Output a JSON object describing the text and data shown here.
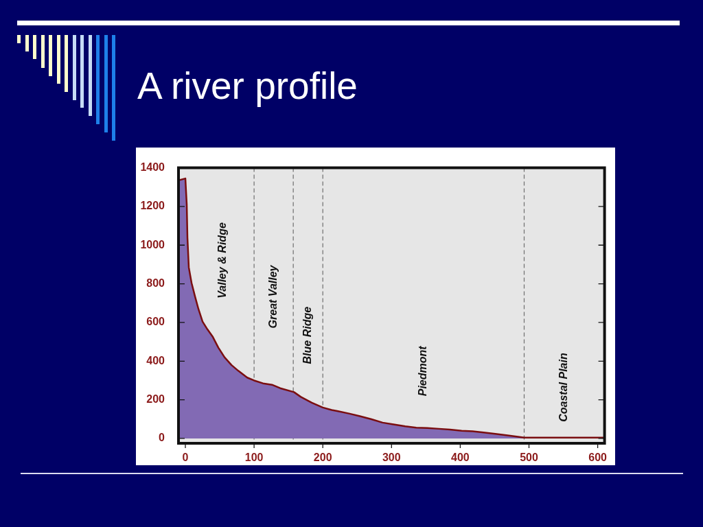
{
  "chart_data": {
    "type": "area",
    "title": "A river profile",
    "x": [
      -10,
      0,
      2,
      3,
      5,
      9,
      14,
      19,
      25,
      32,
      40,
      48,
      57,
      67,
      77,
      90,
      100,
      113,
      126,
      138,
      158,
      168,
      184,
      200,
      213,
      221,
      238,
      254,
      271,
      287,
      303,
      320,
      336,
      352,
      369,
      385,
      402,
      418,
      434,
      451,
      467,
      484,
      493,
      610
    ],
    "series": [
      {
        "color": "#826ab4",
        "values": [
          1335,
          1345,
          1210,
          1040,
          885,
          805,
          735,
          670,
          605,
          565,
          525,
          470,
          420,
          380,
          350,
          315,
          300,
          285,
          278,
          260,
          240,
          215,
          185,
          160,
          147,
          142,
          129,
          115,
          99,
          82,
          73,
          63,
          56,
          54,
          50,
          46,
          40,
          37,
          31,
          24,
          17,
          9,
          4,
          4
        ]
      },
      {
        "type": "line",
        "color": "#7a0e10",
        "values": [
          1335,
          1345,
          1210,
          1040,
          885,
          805,
          735,
          670,
          605,
          565,
          525,
          470,
          420,
          380,
          350,
          315,
          300,
          285,
          278,
          260,
          240,
          215,
          185,
          160,
          147,
          142,
          129,
          115,
          99,
          82,
          73,
          63,
          56,
          54,
          50,
          46,
          40,
          37,
          31,
          24,
          17,
          9,
          4,
          4
        ]
      }
    ],
    "xlim": [
      -10,
      610
    ],
    "xticks": [
      0,
      100,
      200,
      300,
      400,
      500,
      600
    ],
    "ylim": [
      -25,
      1400
    ],
    "yticks": [
      0,
      200,
      400,
      600,
      800,
      1000,
      1200,
      1400
    ],
    "ref_lines": [
      {
        "axis": "x",
        "value": 100,
        "color": "#6e6e6e",
        "line_style": "dashed"
      },
      {
        "axis": "x",
        "value": 157,
        "color": "#6e6e6e",
        "line_style": "dashed"
      },
      {
        "axis": "x",
        "value": 200,
        "color": "#6e6e6e",
        "line_style": "dashed"
      },
      {
        "axis": "x",
        "value": 493,
        "color": "#6e6e6e",
        "line_style": "dashed"
      }
    ],
    "annotations": [
      "Valley & Ridge",
      "Great Valley",
      "Blue Ridge",
      "Piedmont",
      "Coastal Plain"
    ]
  }
}
